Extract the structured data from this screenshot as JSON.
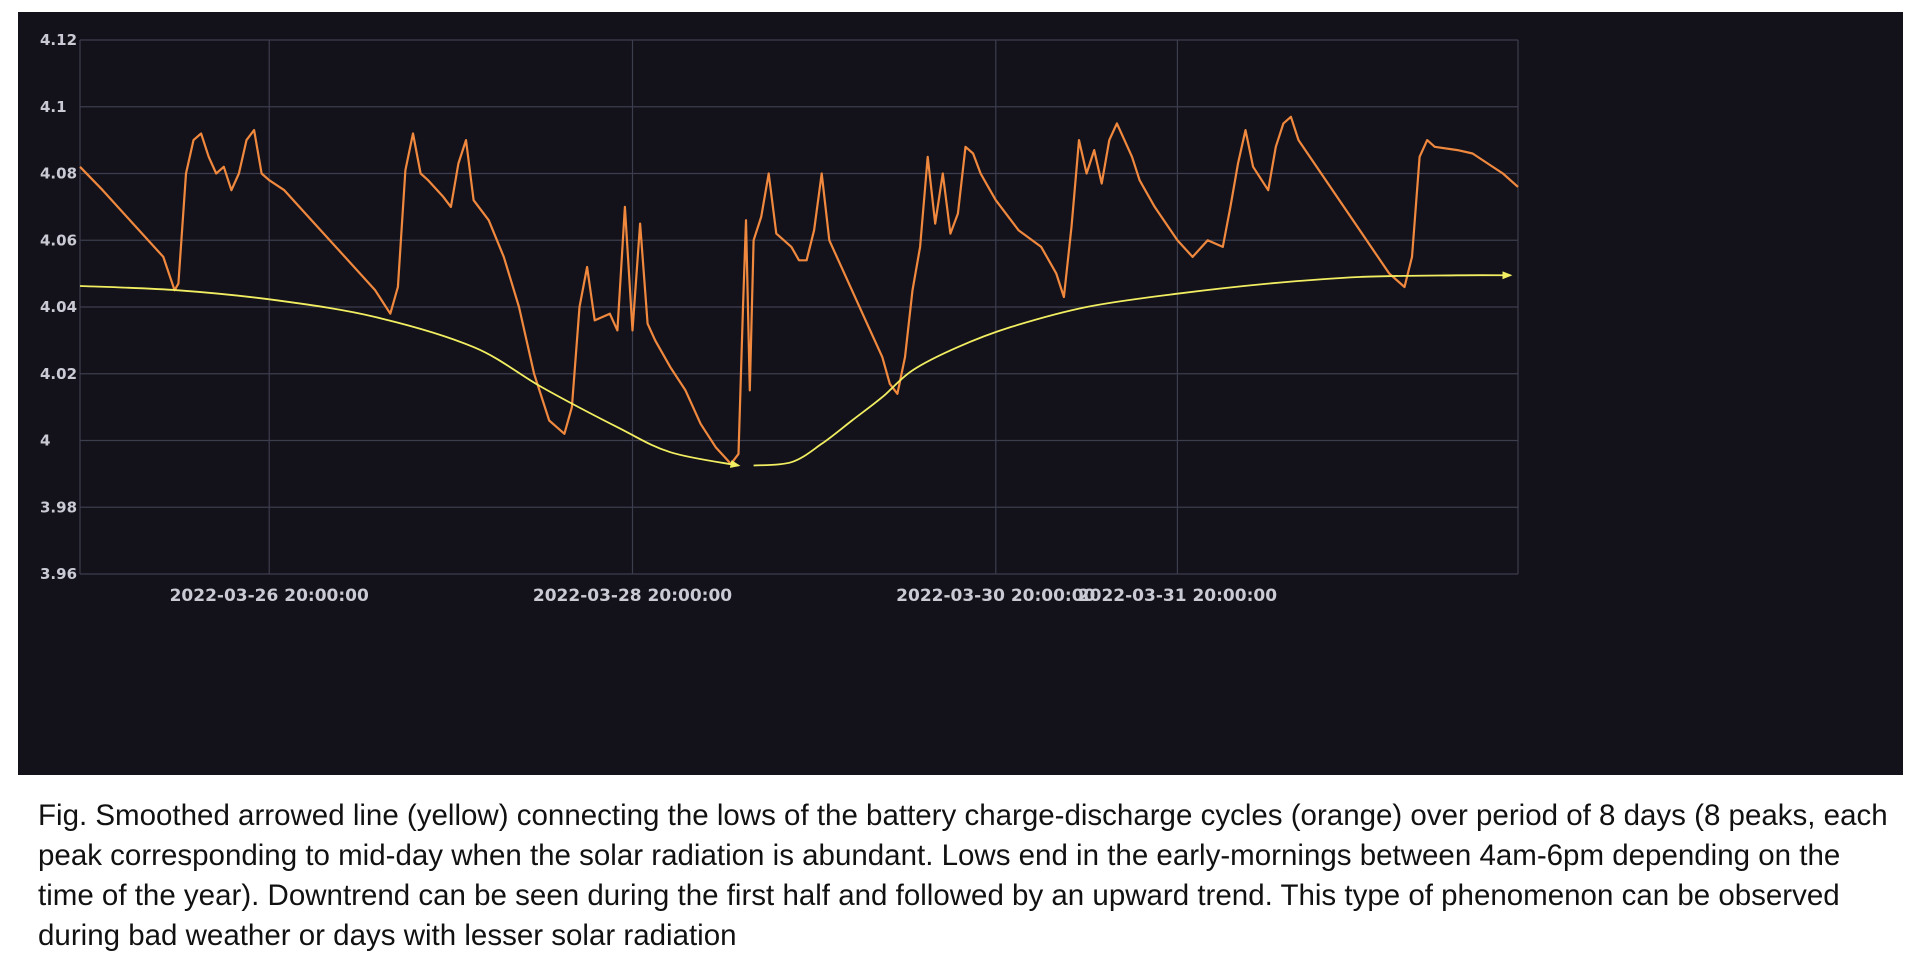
{
  "chart_data": {
    "type": "line",
    "title": "",
    "xlabel": "",
    "ylabel": "",
    "ylim": [
      3.96,
      4.12
    ],
    "yticks": [
      "4.12",
      "4.1",
      "4.08",
      "4.06",
      "4.04",
      "4.02",
      "4",
      "3.98",
      "3.96"
    ],
    "xticks": [
      "2022-03-26 20:00:00",
      "2022-03-28 20:00:00",
      "2022-03-30 20:00:00",
      "2022-03-31 20:00:00"
    ],
    "xtick_hours": [
      42,
      90,
      138,
      162
    ],
    "x_range_hours": [
      17,
      207
    ],
    "x_unit": "hours since 2022-03-25 00:00",
    "grid": true,
    "series": [
      {
        "role": "battery charge-discharge cycles",
        "color": "#f0883e",
        "points": [
          [
            17.0,
            4.082
          ],
          [
            20.0,
            4.075
          ],
          [
            24.0,
            4.065
          ],
          [
            28.0,
            4.055
          ],
          [
            29.5,
            4.045
          ],
          [
            30.0,
            4.047
          ],
          [
            31.0,
            4.08
          ],
          [
            32.0,
            4.09
          ],
          [
            33.0,
            4.092
          ],
          [
            34.0,
            4.085
          ],
          [
            35.0,
            4.08
          ],
          [
            36.0,
            4.082
          ],
          [
            37.0,
            4.075
          ],
          [
            38.0,
            4.08
          ],
          [
            39.0,
            4.09
          ],
          [
            40.0,
            4.093
          ],
          [
            41.0,
            4.08
          ],
          [
            42.0,
            4.078
          ],
          [
            44.0,
            4.075
          ],
          [
            48.0,
            4.065
          ],
          [
            52.0,
            4.055
          ],
          [
            56.0,
            4.045
          ],
          [
            58.0,
            4.038
          ],
          [
            59.0,
            4.046
          ],
          [
            60.0,
            4.081
          ],
          [
            61.0,
            4.092
          ],
          [
            62.0,
            4.08
          ],
          [
            63.0,
            4.078
          ],
          [
            65.0,
            4.073
          ],
          [
            66.0,
            4.07
          ],
          [
            67.0,
            4.083
          ],
          [
            68.0,
            4.09
          ],
          [
            69.0,
            4.072
          ],
          [
            71.0,
            4.066
          ],
          [
            73.0,
            4.055
          ],
          [
            75.0,
            4.04
          ],
          [
            77.0,
            4.02
          ],
          [
            79.0,
            4.006
          ],
          [
            81.0,
            4.002
          ],
          [
            82.0,
            4.01
          ],
          [
            83.0,
            4.04
          ],
          [
            84.0,
            4.052
          ],
          [
            85.0,
            4.036
          ],
          [
            87.0,
            4.038
          ],
          [
            88.0,
            4.033
          ],
          [
            89.0,
            4.07
          ],
          [
            90.0,
            4.033
          ],
          [
            91.0,
            4.065
          ],
          [
            92.0,
            4.035
          ],
          [
            93.0,
            4.03
          ],
          [
            95.0,
            4.022
          ],
          [
            97.0,
            4.015
          ],
          [
            99.0,
            4.005
          ],
          [
            101.0,
            3.998
          ],
          [
            103.0,
            3.993
          ],
          [
            104.0,
            3.996
          ],
          [
            104.6,
            4.04
          ],
          [
            105.0,
            4.066
          ],
          [
            105.5,
            4.015
          ],
          [
            106.0,
            4.06
          ],
          [
            107.0,
            4.067
          ],
          [
            108.0,
            4.08
          ],
          [
            109.0,
            4.062
          ],
          [
            111.0,
            4.058
          ],
          [
            112.0,
            4.054
          ],
          [
            113.0,
            4.054
          ],
          [
            114.0,
            4.063
          ],
          [
            115.0,
            4.08
          ],
          [
            116.0,
            4.06
          ],
          [
            118.0,
            4.05
          ],
          [
            121.0,
            4.035
          ],
          [
            123.0,
            4.025
          ],
          [
            124.0,
            4.017
          ],
          [
            125.0,
            4.014
          ],
          [
            126.0,
            4.025
          ],
          [
            127.0,
            4.045
          ],
          [
            128.0,
            4.058
          ],
          [
            129.0,
            4.085
          ],
          [
            130.0,
            4.065
          ],
          [
            131.0,
            4.08
          ],
          [
            132.0,
            4.062
          ],
          [
            133.0,
            4.068
          ],
          [
            134.0,
            4.088
          ],
          [
            135.0,
            4.086
          ],
          [
            136.0,
            4.08
          ],
          [
            137.0,
            4.076
          ],
          [
            138.0,
            4.072
          ],
          [
            141.0,
            4.063
          ],
          [
            144.0,
            4.058
          ],
          [
            146.0,
            4.05
          ],
          [
            147.0,
            4.043
          ],
          [
            148.0,
            4.064
          ],
          [
            149.0,
            4.09
          ],
          [
            150.0,
            4.08
          ],
          [
            151.0,
            4.087
          ],
          [
            152.0,
            4.077
          ],
          [
            153.0,
            4.09
          ],
          [
            154.0,
            4.095
          ],
          [
            156.0,
            4.085
          ],
          [
            157.0,
            4.078
          ],
          [
            159.0,
            4.07
          ],
          [
            162.0,
            4.06
          ],
          [
            164.0,
            4.055
          ],
          [
            166.0,
            4.06
          ],
          [
            168.0,
            4.058
          ],
          [
            169.0,
            4.07
          ],
          [
            170.0,
            4.083
          ],
          [
            171.0,
            4.093
          ],
          [
            172.0,
            4.082
          ],
          [
            174.0,
            4.075
          ],
          [
            175.0,
            4.088
          ],
          [
            176.0,
            4.095
          ],
          [
            177.0,
            4.097
          ],
          [
            178.0,
            4.09
          ],
          [
            181.0,
            4.08
          ],
          [
            184.0,
            4.07
          ],
          [
            187.0,
            4.06
          ],
          [
            190.0,
            4.05
          ],
          [
            192.0,
            4.046
          ],
          [
            193.0,
            4.055
          ],
          [
            194.0,
            4.085
          ],
          [
            195.0,
            4.09
          ],
          [
            196.0,
            4.088
          ],
          [
            199.0,
            4.087
          ],
          [
            201.0,
            4.086
          ],
          [
            203.0,
            4.083
          ],
          [
            205.0,
            4.08
          ],
          [
            207.0,
            4.076
          ]
        ]
      },
      {
        "role": "smoothed arrowed line connecting the lows",
        "color": "#f2ee61",
        "points": [
          [
            17.0,
            4.0463
          ],
          [
            30.0,
            4.045
          ],
          [
            43.0,
            4.042
          ],
          [
            56.0,
            4.037
          ],
          [
            69.0,
            4.028
          ],
          [
            78.0,
            4.016
          ],
          [
            88.0,
            4.004
          ],
          [
            95.0,
            3.9965
          ],
          [
            104.0,
            3.9925
          ],
          [
            106.0,
            3.9925
          ],
          [
            111.0,
            3.9935
          ],
          [
            115.0,
            3.999
          ],
          [
            119.0,
            4.006
          ],
          [
            123.0,
            4.013
          ],
          [
            127.0,
            4.021
          ],
          [
            133.0,
            4.028
          ],
          [
            140.0,
            4.034
          ],
          [
            150.0,
            4.04
          ],
          [
            162.0,
            4.044
          ],
          [
            174.0,
            4.047
          ],
          [
            186.0,
            4.049
          ],
          [
            199.0,
            4.0495
          ],
          [
            206.0,
            4.0495
          ]
        ]
      }
    ]
  },
  "caption": "Fig. Smoothed arrowed line (yellow) connecting the lows of the battery charge-discharge cycles (orange) over period of 8 days (8 peaks, each peak corresponding to mid-day when the solar radiation is abundant. Lows end in the early-mornings between 4am-6pm depending on the time of the year). Downtrend can be seen during the first half and followed by an upward trend. This type of phenomenon can be observed during bad weather or days with lesser solar radiation"
}
